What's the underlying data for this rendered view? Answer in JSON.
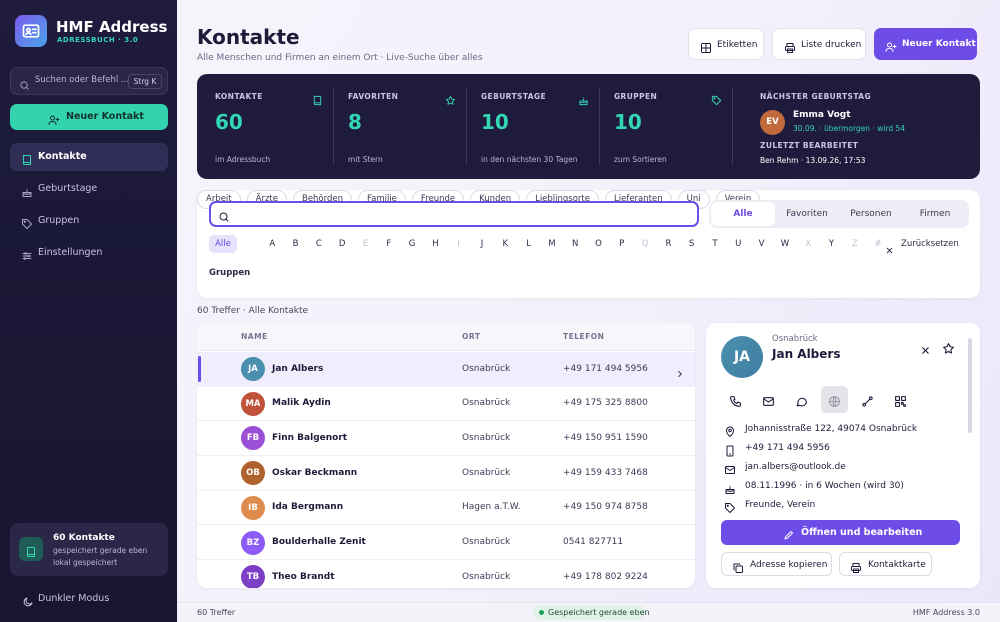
{
  "sidebar": {
    "app_name": "HMF Address",
    "app_subtitle": "ADRESSBUCH · 3.0",
    "search_placeholder": "Suchen oder Befehl ...",
    "search_shortcut": "Strg K",
    "new_contact": "Neuer Kontakt",
    "nav": [
      {
        "label": "Kontakte",
        "active": true
      },
      {
        "label": "Geburtstage",
        "active": false
      },
      {
        "label": "Gruppen",
        "active": false
      },
      {
        "label": "Einstellungen",
        "active": false
      }
    ],
    "status": {
      "title": "60 Kontakte",
      "text": "gespeichert gerade eben lokal gespeichert"
    },
    "theme_toggle": "Dunkler Modus"
  },
  "header": {
    "title": "Kontakte",
    "subtitle": "Alle Menschen und Firmen an einem Ort · Live-Suche über alles",
    "buttons": [
      "Etiketten",
      "Liste drucken",
      "Neuer Kontakt"
    ]
  },
  "stats": [
    {
      "label": "KONTAKTE",
      "value": "60",
      "caption": "im Adressbuch"
    },
    {
      "label": "FAVORITEN",
      "value": "8",
      "caption": "mit Stern"
    },
    {
      "label": "GEBURTSTAGE",
      "value": "10",
      "caption": "in den nächsten 30 Tagen"
    },
    {
      "label": "GRUPPEN",
      "value": "10",
      "caption": "zum Sortieren"
    }
  ],
  "next_birthday": {
    "label": "NÄCHSTER GEBURTSTAG",
    "initials": "EV",
    "name": "Emma Vogt",
    "detail": "30.09. · übermorgen · wird 54"
  },
  "last_edited": {
    "label": "ZULETZT BEARBEITET",
    "text": "Ben Rehm · 13.09.26, 17:53"
  },
  "filters": {
    "tabs": [
      "Alle",
      "Favoriten",
      "Personen",
      "Firmen"
    ],
    "active_tab": 0,
    "letters": [
      {
        "label": "Alle",
        "active": true
      },
      {
        "label": "A"
      },
      {
        "label": "B"
      },
      {
        "label": "C"
      },
      {
        "label": "D"
      },
      {
        "label": "E",
        "disabled": true
      },
      {
        "label": "F"
      },
      {
        "label": "G"
      },
      {
        "label": "H"
      },
      {
        "label": "I",
        "disabled": true
      },
      {
        "label": "J"
      },
      {
        "label": "K"
      },
      {
        "label": "L"
      },
      {
        "label": "M"
      },
      {
        "label": "N"
      },
      {
        "label": "O"
      },
      {
        "label": "P"
      },
      {
        "label": "Q",
        "disabled": true
      },
      {
        "label": "R"
      },
      {
        "label": "S"
      },
      {
        "label": "T"
      },
      {
        "label": "U"
      },
      {
        "label": "V"
      },
      {
        "label": "W"
      },
      {
        "label": "X",
        "disabled": true
      },
      {
        "label": "Y"
      },
      {
        "label": "Z",
        "disabled": true
      },
      {
        "label": "#",
        "disabled": true
      }
    ],
    "reset": "Zurücksetzen",
    "groups_label": "Gruppen",
    "groups": [
      "Arbeit",
      "Ärzte",
      "Behörden",
      "Familie",
      "Freunde",
      "Kunden",
      "Lieblingsorte",
      "Lieferanten",
      "Uni",
      "Verein"
    ]
  },
  "results_summary": "60 Treffer · Alle Kontakte",
  "table": {
    "columns": [
      "NAME",
      "ORT",
      "TELEFON"
    ],
    "rows": [
      {
        "initials": "JA",
        "name": "Jan Albers",
        "city": "Osnabrück",
        "phone": "+49 171 494 5956",
        "color": "#4b8fae",
        "selected": true
      },
      {
        "initials": "MA",
        "name": "Malik Aydin",
        "city": "Osnabrück",
        "phone": "+49 175 325 8800",
        "color": "#c0533a"
      },
      {
        "initials": "FB",
        "name": "Finn Balgenort",
        "city": "Osnabrück",
        "phone": "+49 150 951 1590",
        "color": "#9b4fd6"
      },
      {
        "initials": "OB",
        "name": "Oskar Beckmann",
        "city": "Osnabrück",
        "phone": "+49 159 433 7468",
        "color": "#b0622e"
      },
      {
        "initials": "IB",
        "name": "Ida Bergmann",
        "city": "Hagen a.T.W.",
        "phone": "+49 150 974 8758",
        "color": "#dd8c4e"
      },
      {
        "initials": "BZ",
        "name": "Boulderhalle Zenit",
        "city": "Osnabrück",
        "phone": "0541 827711",
        "color": "#8b5cf6"
      },
      {
        "initials": "TB",
        "name": "Theo Brandt",
        "city": "Osnabrück",
        "phone": "+49 178 802 9224",
        "color": "#7e3fc7"
      }
    ]
  },
  "detail": {
    "initials": "JA",
    "city": "Osnabrück",
    "name": "Jan Albers",
    "address": "Johannisstraße 122, 49074 Osnabrück",
    "phone": "+49 171 494 5956",
    "email": "jan.albers@outlook.de",
    "birthday": "08.11.1996 · in 6 Wochen (wird 30)",
    "groups": "Freunde, Verein",
    "primary_action": "Öffnen und bearbeiten",
    "actions": [
      "Adresse kopieren",
      "Kontaktkarte"
    ]
  },
  "footer": {
    "count": "60 Treffer",
    "save_status": "Gespeichert gerade eben",
    "version": "HMF Address 3.0"
  }
}
